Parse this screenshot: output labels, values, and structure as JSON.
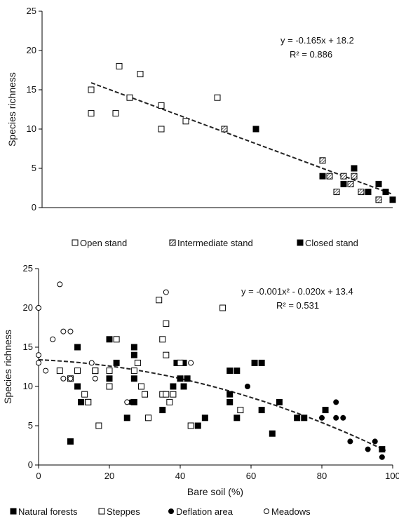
{
  "chart_data": [
    {
      "type": "scatter",
      "title": "",
      "xlabel": "",
      "ylabel": "Species richness",
      "xlim": [
        0,
        100
      ],
      "ylim": [
        0,
        25
      ],
      "yticks": [
        "0",
        "5",
        "10",
        "15",
        "20",
        "25"
      ],
      "grid": false,
      "legend_position": "bottom",
      "equation": "y = -0.165x + 18.2",
      "r2": "R² = 0.886",
      "trend": {
        "kind": "linear",
        "a": -0.165,
        "b": 18.2,
        "x_from": 14,
        "x_to": 100
      },
      "series": [
        {
          "name": "Open stand",
          "marker": "open-square",
          "x": [
            14,
            14,
            21,
            22,
            25,
            28,
            34,
            34,
            41,
            50
          ],
          "y": [
            15,
            12,
            12,
            18,
            14,
            17,
            13,
            10,
            11,
            14
          ]
        },
        {
          "name": "Intermediate stand",
          "marker": "hatched-square",
          "x": [
            52,
            80,
            82,
            84,
            86,
            88,
            89,
            91,
            96
          ],
          "y": [
            10,
            6,
            4,
            2,
            4,
            3,
            4,
            2,
            1
          ]
        },
        {
          "name": "Closed stand",
          "marker": "filled-square",
          "x": [
            61,
            80,
            86,
            89,
            93,
            96,
            98,
            100
          ],
          "y": [
            10,
            4,
            3,
            5,
            2,
            3,
            2,
            1
          ]
        }
      ]
    },
    {
      "type": "scatter",
      "title": "",
      "xlabel": "Bare soil (%)",
      "ylabel": "Species richness",
      "xlim": [
        0,
        100
      ],
      "ylim": [
        0,
        25
      ],
      "xticks": [
        "0",
        "20",
        "40",
        "60",
        "80",
        "100"
      ],
      "yticks": [
        "0",
        "5",
        "10",
        "15",
        "20",
        "25"
      ],
      "grid": false,
      "legend_position": "bottom",
      "equation": "y = -0.001x² - 0.020x + 13.4",
      "r2": "R² = 0.531",
      "trend": {
        "kind": "quadratic",
        "a": -0.001,
        "b": -0.02,
        "c": 13.4,
        "x_from": 0,
        "x_to": 98
      },
      "series": [
        {
          "name": "Natural forests",
          "marker": "filled-square",
          "x": [
            9,
            11,
            11,
            12,
            14,
            16,
            20,
            20,
            22,
            25,
            27,
            27,
            27,
            27,
            35,
            38,
            39,
            40,
            41,
            41,
            42,
            45,
            47,
            54,
            54,
            54,
            56,
            56,
            61,
            63,
            63,
            66,
            68,
            73,
            75,
            81,
            97
          ],
          "y": [
            3,
            15,
            10,
            8,
            8,
            12,
            16,
            11,
            13,
            6,
            15,
            14,
            11,
            8,
            7,
            10,
            13,
            11,
            10,
            13,
            11,
            5,
            6,
            12,
            9,
            8,
            12,
            6,
            13,
            13,
            7,
            4,
            8,
            6,
            6,
            7,
            2
          ]
        },
        {
          "name": "Steppes",
          "marker": "open-square",
          "x": [
            6,
            9,
            11,
            13,
            14,
            16,
            17,
            20,
            20,
            22,
            27,
            28,
            29,
            30,
            31,
            34,
            35,
            35,
            36,
            36,
            36,
            37,
            38,
            40,
            43,
            52,
            57
          ],
          "y": [
            12,
            11,
            12,
            9,
            8,
            12,
            5,
            12,
            10,
            16,
            12,
            13,
            10,
            9,
            6,
            21,
            16,
            9,
            18,
            14,
            9,
            8,
            9,
            13,
            5,
            20,
            7
          ]
        },
        {
          "name": "Deflation area",
          "marker": "filled-circle",
          "x": [
            26,
            59,
            80,
            84,
            84,
            86,
            88,
            93,
            95,
            97
          ],
          "y": [
            8,
            10,
            6,
            8,
            6,
            6,
            3,
            2,
            3,
            1
          ]
        },
        {
          "name": "Meadows",
          "marker": "open-circle",
          "x": [
            0,
            0,
            0,
            2,
            4,
            6,
            7,
            7,
            9,
            9,
            15,
            16,
            25,
            36,
            43
          ],
          "y": [
            20,
            14,
            13,
            12,
            16,
            23,
            17,
            11,
            17,
            11,
            13,
            11,
            8,
            22,
            13
          ]
        }
      ]
    }
  ]
}
